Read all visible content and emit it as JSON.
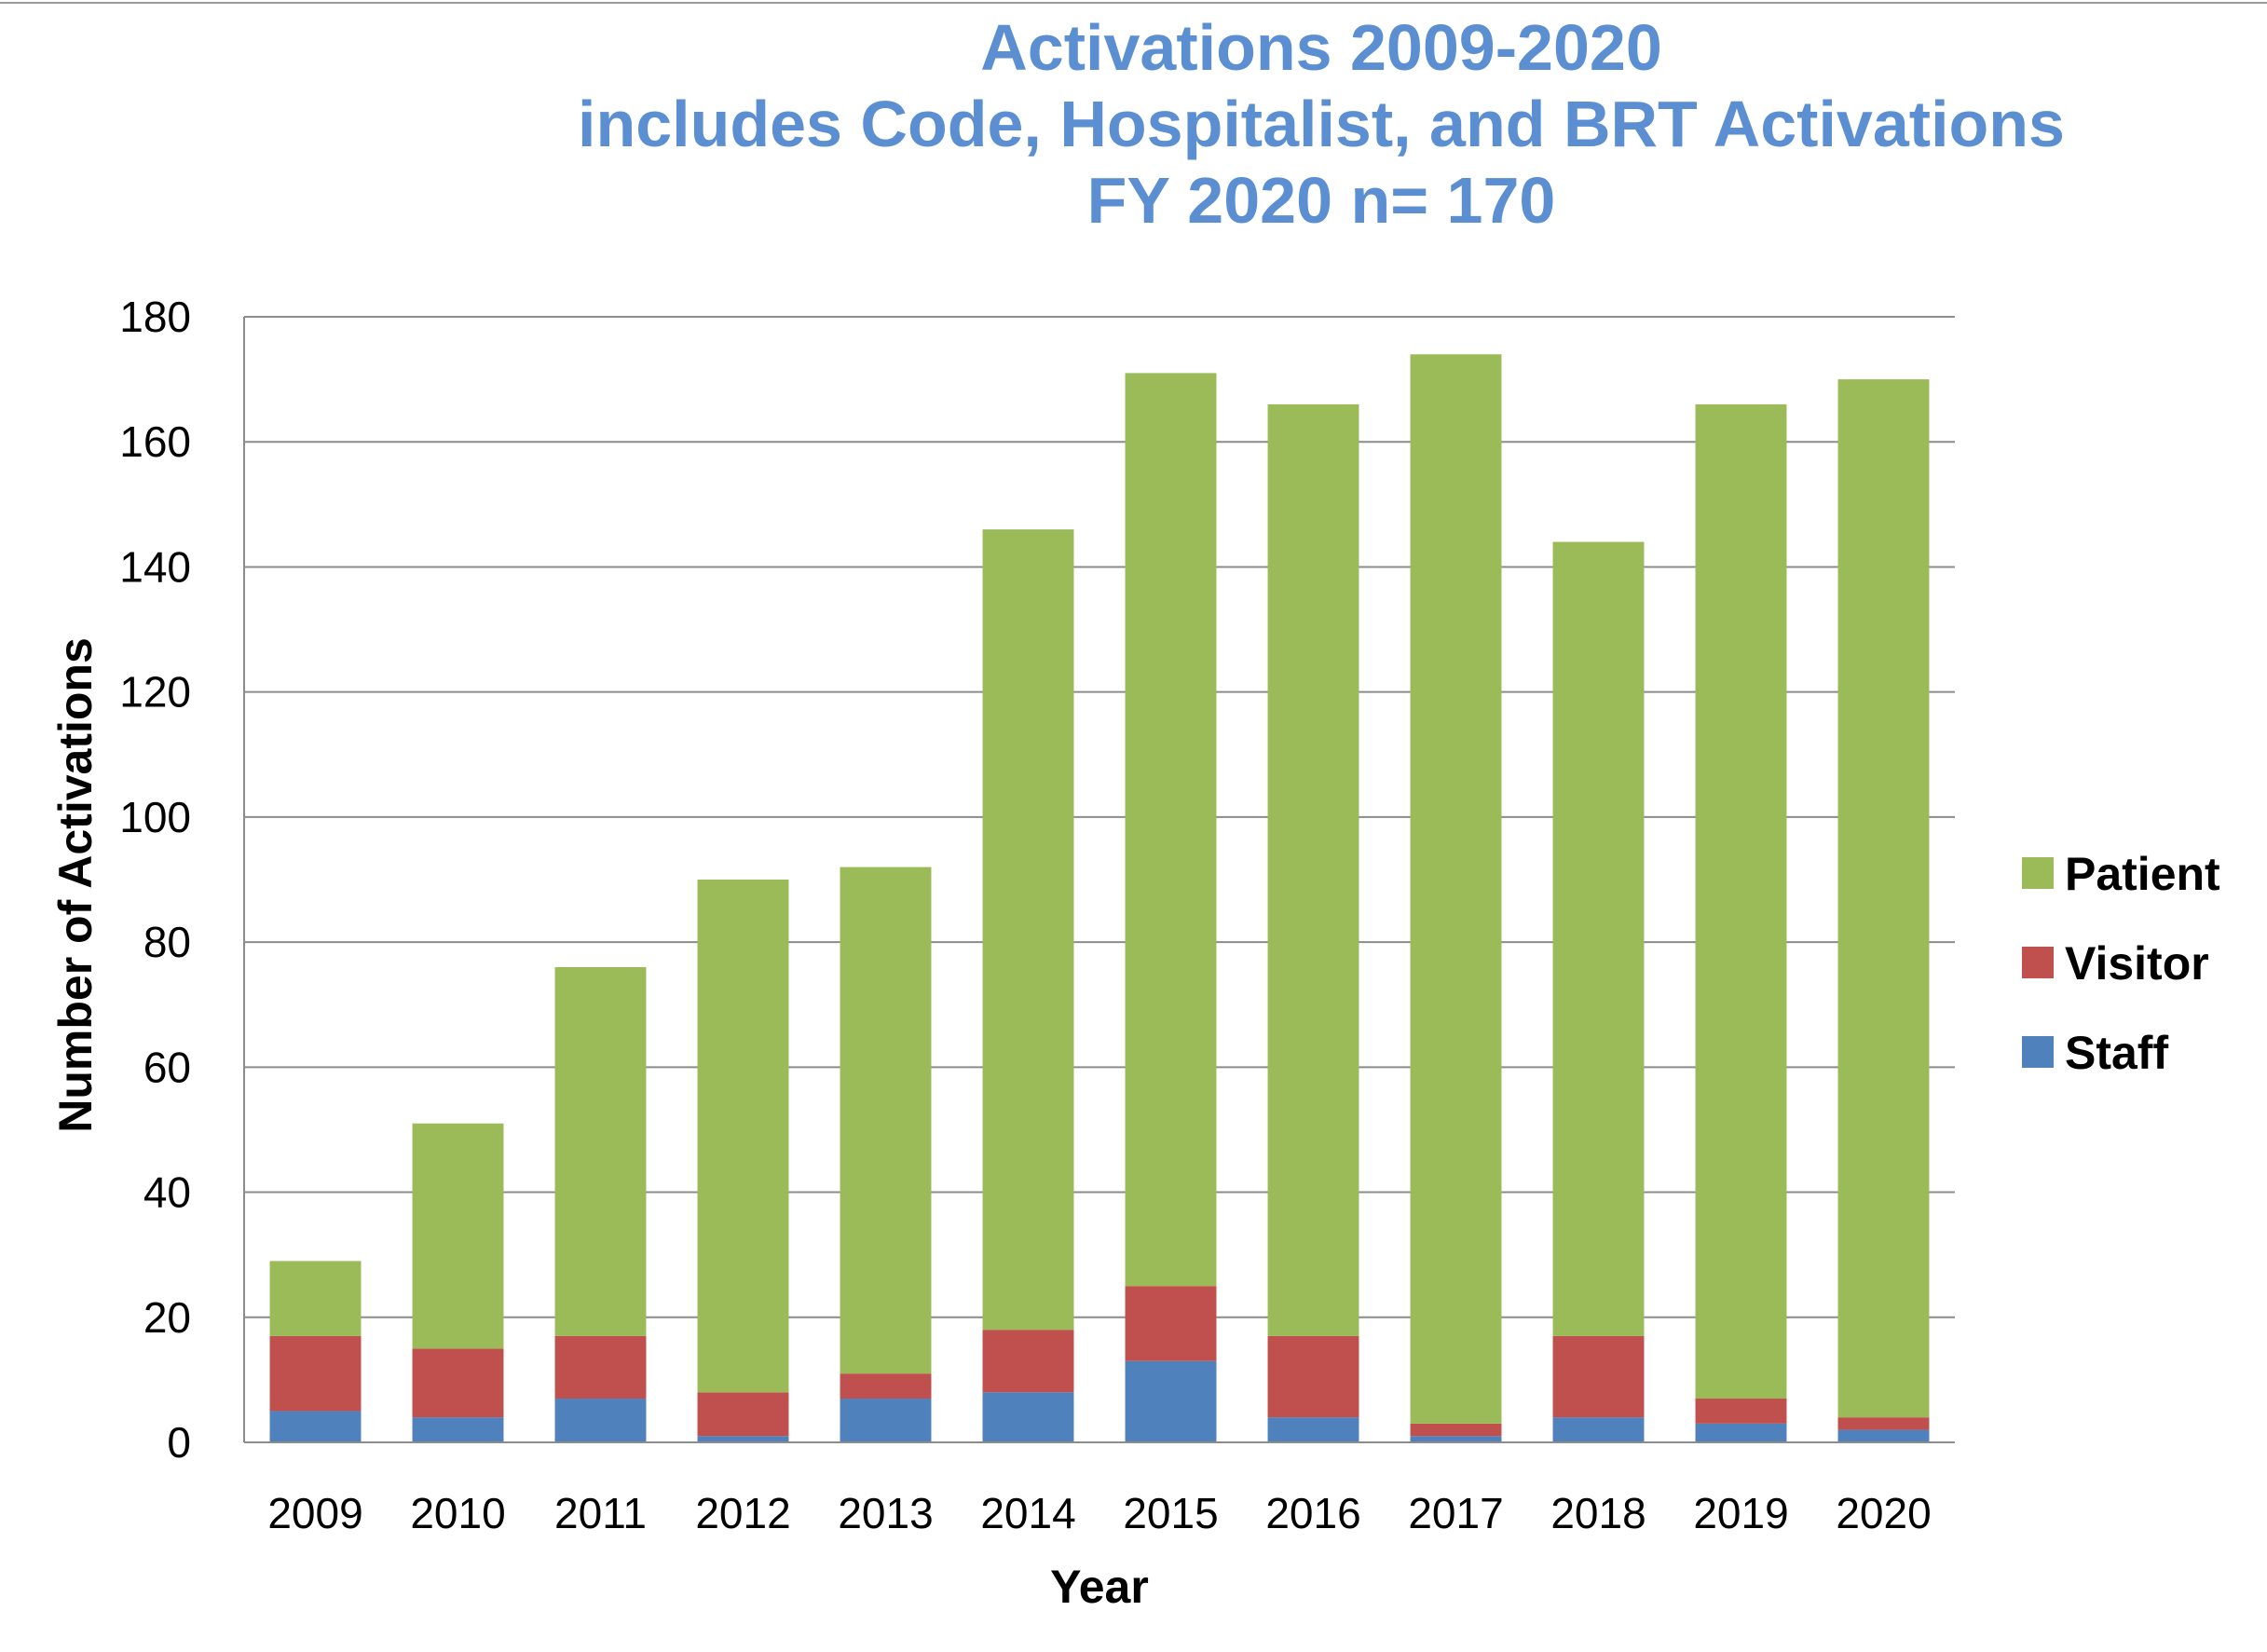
{
  "chart_data": {
    "type": "bar",
    "stacked": true,
    "title": [
      "Activations 2009-2020",
      "includes Code, Hospitalist, and BRT Activations",
      "FY 2020 n= 170"
    ],
    "xlabel": "Year",
    "ylabel": "Number of Activations",
    "ylim": [
      0,
      180
    ],
    "yticks": [
      0,
      20,
      40,
      60,
      80,
      100,
      120,
      140,
      160,
      180
    ],
    "grid": true,
    "legend_position": "right",
    "categories": [
      "2009",
      "2010",
      "2011",
      "2012",
      "2013",
      "2014",
      "2015",
      "2016",
      "2017",
      "2018",
      "2019",
      "2020"
    ],
    "series": [
      {
        "name": "Staff",
        "color": "#4F81BD",
        "values": [
          5,
          4,
          7,
          1,
          7,
          8,
          13,
          4,
          1,
          4,
          3,
          2
        ]
      },
      {
        "name": "Visitor",
        "color": "#C0504D",
        "values": [
          12,
          11,
          10,
          7,
          4,
          10,
          12,
          13,
          2,
          13,
          4,
          2
        ]
      },
      {
        "name": "Patient",
        "color": "#9BBB59",
        "values": [
          12,
          36,
          59,
          82,
          81,
          128,
          146,
          149,
          171,
          127,
          159,
          166
        ]
      }
    ],
    "legend_order": [
      "Patient",
      "Visitor",
      "Staff"
    ],
    "title_color": "#5B8FD2"
  }
}
